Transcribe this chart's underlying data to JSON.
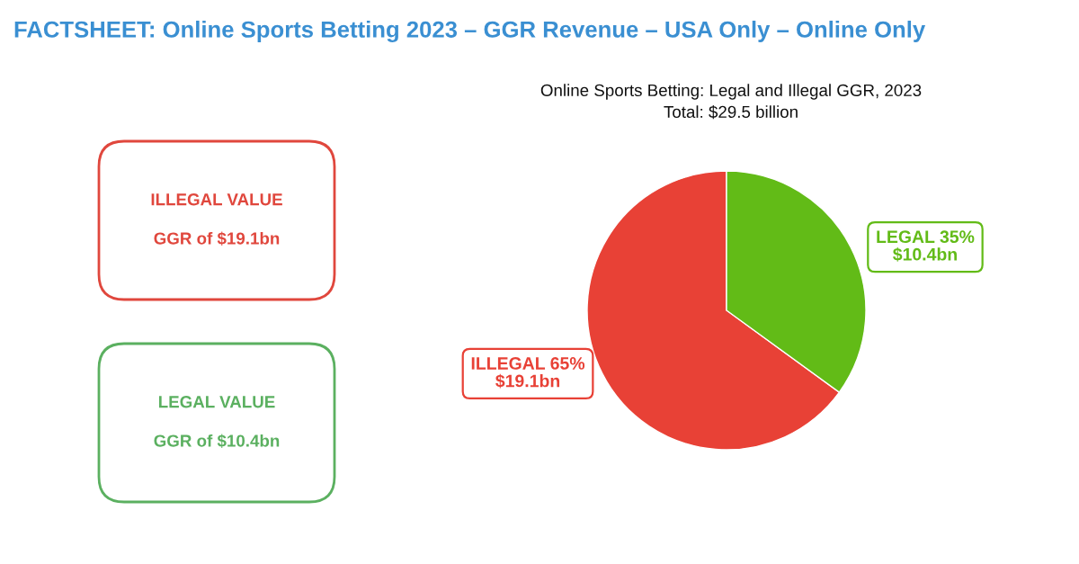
{
  "chart_data": [
    {
      "type": "other",
      "title": "FACTSHEET: Online Sports Betting 2023 – GGR Revenue – USA Only – Online Only",
      "annotations": [
        "ILLEGAL VALUE\nGGR of $19.1bn",
        "LEGAL VALUE\nGGR of $10.4bn"
      ],
      "colors": [
        "#e0473d",
        "#5bb060"
      ]
    },
    {
      "type": "pie",
      "title": "Online Sports Betting: Legal and Illegal GGR, 2023",
      "subtitle": "Total: $29.5 billion",
      "categories": [
        "ILLEGAL",
        "LEGAL"
      ],
      "values": [
        65,
        35
      ],
      "colors": [
        "#e84136",
        "#62bb17"
      ],
      "value_labels": [
        "65%\n$19.1bn",
        "35%\n$10.4bn"
      ]
    }
  ]
}
